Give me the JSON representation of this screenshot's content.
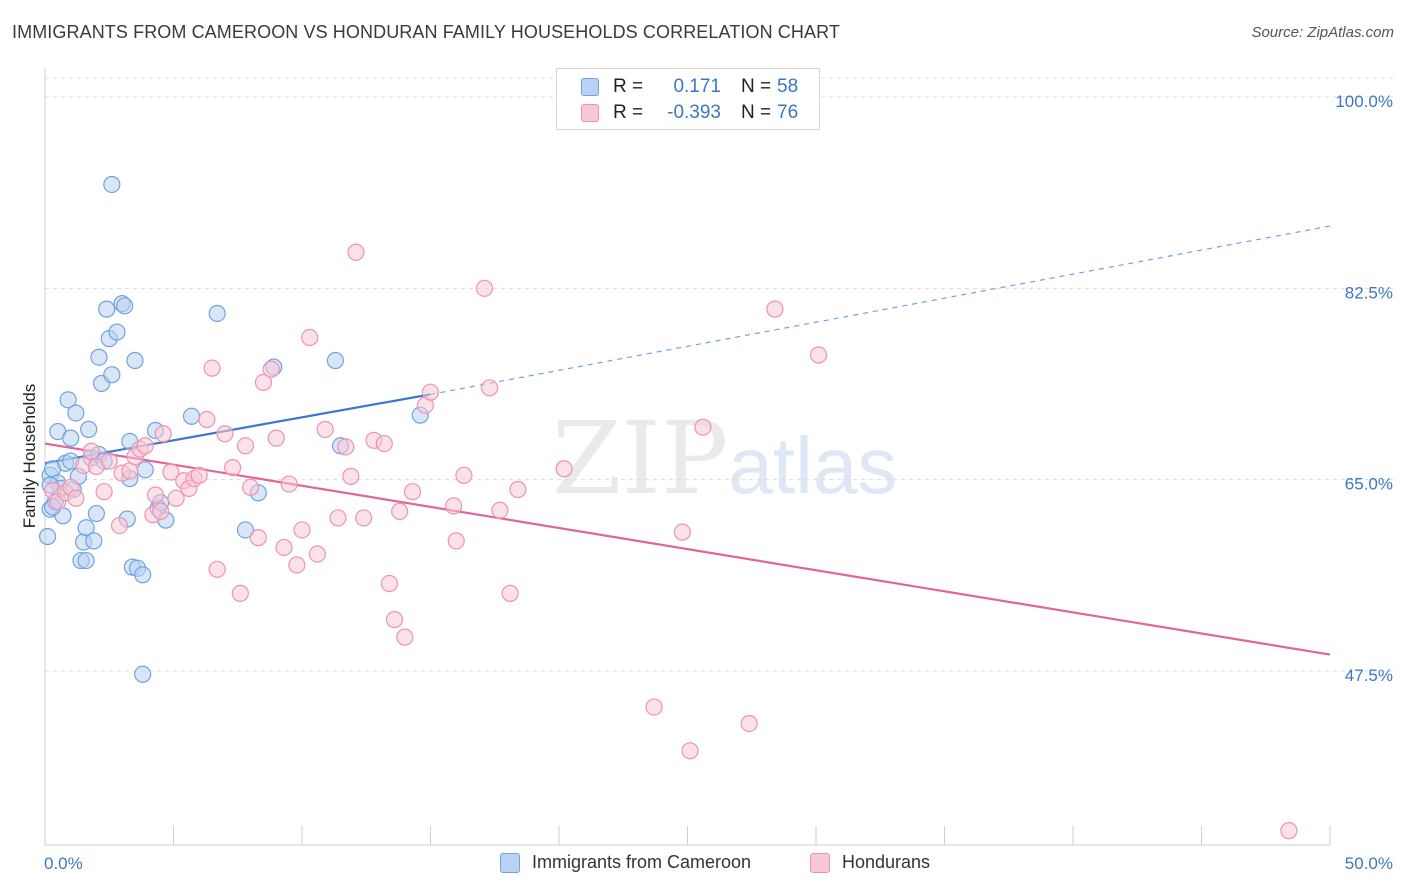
{
  "title": "IMMIGRANTS FROM CAMEROON VS HONDURAN FAMILY HOUSEHOLDS CORRELATION CHART",
  "source": "Source: ZipAtlas.com",
  "watermark": {
    "main": "ZIP",
    "sub": "atlas"
  },
  "legend_top": {
    "rows": [
      {
        "r_label": "R =",
        "r_value": "0.171",
        "n_label": "N =",
        "n_value": "58",
        "color": "#6fa3e0",
        "fill": "#b9d1f3"
      },
      {
        "r_label": "R =",
        "r_value": "-0.393",
        "n_label": "N =",
        "n_value": "76",
        "color": "#ee93b0",
        "fill": "#f8c8d6"
      }
    ]
  },
  "legend_bottom": {
    "items": [
      {
        "label": "Immigrants from Cameroon",
        "color": "#6fa3e0",
        "fill": "#b9d1f3"
      },
      {
        "label": "Hondurans",
        "color": "#ee93b0",
        "fill": "#f8c8d6"
      }
    ]
  },
  "chart_data": {
    "type": "scatter",
    "title": "IMMIGRANTS FROM CAMEROON VS HONDURAN FAMILY HOUSEHOLDS CORRELATION CHART",
    "xlabel": "",
    "ylabel": "Family Households",
    "xlim": [
      0,
      50
    ],
    "ylim": [
      32,
      102
    ],
    "x_tick_labels": [
      "0.0%",
      "50.0%"
    ],
    "y_ticks": [
      47.5,
      65.0,
      82.5,
      100.0
    ],
    "y_tick_labels": [
      "47.5%",
      "65.0%",
      "82.5%",
      "100.0%"
    ],
    "grid": true,
    "legend_position": "top-center",
    "series": [
      {
        "name": "Immigrants from Cameroon",
        "color": "#6fa3e0",
        "fill": "#b9d1f3",
        "trend": {
          "x": [
            0,
            15,
            50
          ],
          "y": [
            66.5,
            72.8,
            88.2
          ],
          "solid_until": 15
        },
        "points": [
          [
            0.1,
            59.8
          ],
          [
            0.2,
            62.3
          ],
          [
            0.2,
            65.4
          ],
          [
            0.3,
            66.0
          ],
          [
            0.4,
            63.0
          ],
          [
            0.5,
            69.4
          ],
          [
            0.5,
            64.7
          ],
          [
            0.6,
            64.2
          ],
          [
            0.7,
            61.7
          ],
          [
            0.8,
            66.5
          ],
          [
            0.9,
            72.3
          ],
          [
            1.0,
            66.7
          ],
          [
            1.0,
            68.8
          ],
          [
            1.1,
            64.1
          ],
          [
            1.2,
            71.1
          ],
          [
            1.3,
            65.3
          ],
          [
            1.4,
            57.6
          ],
          [
            1.5,
            59.3
          ],
          [
            1.6,
            57.6
          ],
          [
            1.6,
            60.6
          ],
          [
            1.7,
            69.6
          ],
          [
            1.8,
            67.0
          ],
          [
            1.9,
            59.4
          ],
          [
            2.0,
            61.9
          ],
          [
            2.1,
            67.3
          ],
          [
            2.1,
            76.2
          ],
          [
            2.2,
            73.8
          ],
          [
            2.3,
            66.7
          ],
          [
            2.4,
            80.6
          ],
          [
            2.5,
            77.9
          ],
          [
            2.6,
            74.6
          ],
          [
            2.6,
            92.0
          ],
          [
            2.8,
            78.5
          ],
          [
            3.0,
            81.1
          ],
          [
            3.1,
            80.9
          ],
          [
            3.2,
            61.4
          ],
          [
            3.3,
            68.5
          ],
          [
            3.3,
            65.1
          ],
          [
            3.4,
            57.0
          ],
          [
            3.5,
            75.9
          ],
          [
            3.6,
            56.9
          ],
          [
            3.8,
            56.3
          ],
          [
            3.8,
            47.2
          ],
          [
            3.9,
            65.9
          ],
          [
            4.3,
            69.5
          ],
          [
            4.4,
            62.4
          ],
          [
            4.5,
            62.9
          ],
          [
            4.7,
            61.3
          ],
          [
            5.7,
            70.8
          ],
          [
            6.7,
            80.2
          ],
          [
            7.8,
            60.4
          ],
          [
            8.3,
            63.8
          ],
          [
            8.9,
            75.3
          ],
          [
            11.3,
            75.9
          ],
          [
            11.5,
            68.1
          ],
          [
            14.6,
            70.9
          ],
          [
            0.2,
            64.5
          ],
          [
            0.3,
            62.5
          ]
        ]
      },
      {
        "name": "Hondurans",
        "color": "#ee93b0",
        "fill": "#f8c8d6",
        "trend": {
          "x": [
            0,
            50
          ],
          "y": [
            68.3,
            49.0
          ]
        },
        "points": [
          [
            0.3,
            64.0
          ],
          [
            0.5,
            63.0
          ],
          [
            0.8,
            63.8
          ],
          [
            1.0,
            64.3
          ],
          [
            1.2,
            63.3
          ],
          [
            1.5,
            66.3
          ],
          [
            1.8,
            67.6
          ],
          [
            2.0,
            66.2
          ],
          [
            2.3,
            63.9
          ],
          [
            2.5,
            66.7
          ],
          [
            2.9,
            60.8
          ],
          [
            3.0,
            65.6
          ],
          [
            3.3,
            65.8
          ],
          [
            3.5,
            67.1
          ],
          [
            3.7,
            67.8
          ],
          [
            3.9,
            68.1
          ],
          [
            4.2,
            61.8
          ],
          [
            4.3,
            63.6
          ],
          [
            4.5,
            62.1
          ],
          [
            4.6,
            69.2
          ],
          [
            4.9,
            65.7
          ],
          [
            5.1,
            63.3
          ],
          [
            5.4,
            64.9
          ],
          [
            5.6,
            64.2
          ],
          [
            5.8,
            65.1
          ],
          [
            6.0,
            65.4
          ],
          [
            6.3,
            70.5
          ],
          [
            6.5,
            75.2
          ],
          [
            6.7,
            56.8
          ],
          [
            7.0,
            69.2
          ],
          [
            7.3,
            66.1
          ],
          [
            7.6,
            54.6
          ],
          [
            7.8,
            68.1
          ],
          [
            8.0,
            64.3
          ],
          [
            8.3,
            59.7
          ],
          [
            8.5,
            73.9
          ],
          [
            8.8,
            75.1
          ],
          [
            9.0,
            68.8
          ],
          [
            9.3,
            58.8
          ],
          [
            9.5,
            64.6
          ],
          [
            9.8,
            57.2
          ],
          [
            10.0,
            60.4
          ],
          [
            10.3,
            78.0
          ],
          [
            10.6,
            58.2
          ],
          [
            10.9,
            69.6
          ],
          [
            11.4,
            61.5
          ],
          [
            11.7,
            68.0
          ],
          [
            11.9,
            65.3
          ],
          [
            12.1,
            85.8
          ],
          [
            12.4,
            61.5
          ],
          [
            12.8,
            68.6
          ],
          [
            13.2,
            68.3
          ],
          [
            13.4,
            55.5
          ],
          [
            13.6,
            52.2
          ],
          [
            13.8,
            62.1
          ],
          [
            14.0,
            50.6
          ],
          [
            14.3,
            63.9
          ],
          [
            14.8,
            71.8
          ],
          [
            15.0,
            73.0
          ],
          [
            15.9,
            62.6
          ],
          [
            16.0,
            59.4
          ],
          [
            16.3,
            65.4
          ],
          [
            17.1,
            82.5
          ],
          [
            17.3,
            73.4
          ],
          [
            17.7,
            62.2
          ],
          [
            18.1,
            54.6
          ],
          [
            18.4,
            64.1
          ],
          [
            20.2,
            66.0
          ],
          [
            23.7,
            44.2
          ],
          [
            24.8,
            60.2
          ],
          [
            25.6,
            69.8
          ],
          [
            25.1,
            40.2
          ],
          [
            27.4,
            42.7
          ],
          [
            28.4,
            80.6
          ],
          [
            30.1,
            76.4
          ],
          [
            48.4,
            32.9
          ]
        ]
      }
    ]
  }
}
